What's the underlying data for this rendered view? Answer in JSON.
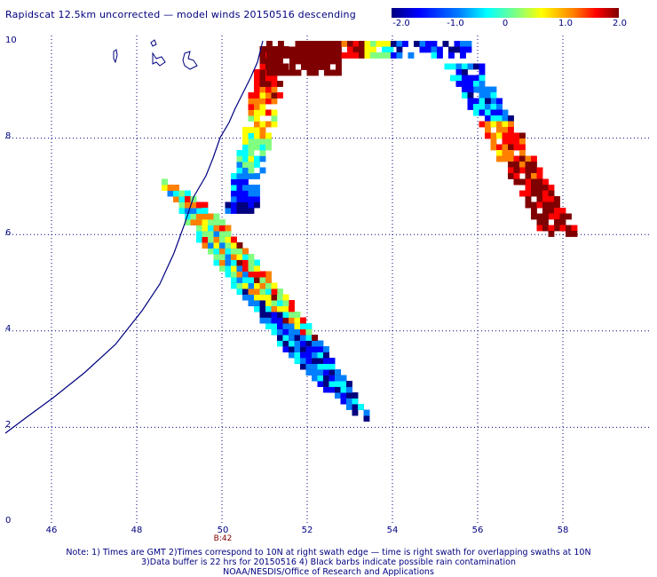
{
  "title": "Rapidscat 12.5km uncorrected — model winds 20150516 descending",
  "colorbar": {
    "ticks": [
      "-2.0",
      "-1.0",
      "0",
      "1.0",
      "2.0"
    ],
    "tick_values": [
      -2,
      -1,
      0,
      1,
      2
    ],
    "colors": [
      "#00007f",
      "#0000ff",
      "#0080ff",
      "#00ffff",
      "#80ff80",
      "#ffff00",
      "#ff8000",
      "#ff0000",
      "#7f0000"
    ]
  },
  "axes": {
    "x_ticks": [
      "46",
      "48",
      "50",
      "52",
      "54",
      "56",
      "58"
    ],
    "y_ticks": [
      "10",
      "8",
      "6",
      "4",
      "2",
      "0"
    ],
    "x_range": [
      44.8,
      59.5
    ],
    "y_range": [
      0,
      10
    ]
  },
  "time_label": "B:42",
  "notes": [
    "Note: 1) Times are GMT 2)Times correspond to 10N at right swath edge — time is right swath for overlapping swaths at 10N",
    "3)Data buffer is 22 hrs for 20150516 4) Black barbs indicate possible rain contamination",
    "NOAA/NESDIS/Office of Research and Applications"
  ]
}
